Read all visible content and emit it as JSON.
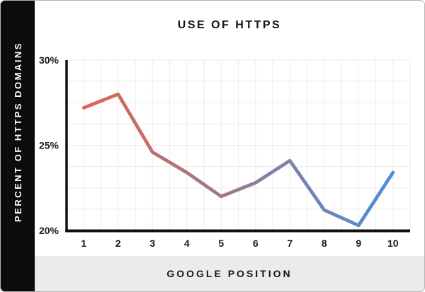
{
  "card": {
    "background": "#ffffff",
    "side_band_color": "#0c0c0c",
    "footer_band_color": "#ebebeb",
    "border_color": "#b5b5b5"
  },
  "chart_data": {
    "type": "line",
    "title": "USE OF HTTPS",
    "xlabel": "GOOGLE POSITION",
    "ylabel": "PERCENT OF HTTPS DOMAINS",
    "x": [
      1,
      2,
      3,
      4,
      5,
      6,
      7,
      8,
      9,
      10
    ],
    "x_tick_labels": [
      "1",
      "2",
      "3",
      "4",
      "5",
      "6",
      "7",
      "8",
      "9",
      "10"
    ],
    "values": [
      27.2,
      28.0,
      24.6,
      23.4,
      22.0,
      22.8,
      24.1,
      21.2,
      20.3,
      23.4
    ],
    "ylim": [
      20,
      30
    ],
    "y_ticks": [
      30,
      25,
      20
    ],
    "y_tick_labels": [
      "30%",
      "25%",
      "20%"
    ],
    "grid": true,
    "y_minor_step_pct": 1.25,
    "x_minor_divisions_per_position": 2,
    "legend": "none",
    "line_gradient_left": "#e1654e",
    "line_gradient_right": "#4a90d8",
    "axis_color": "#111111",
    "grid_color": "#ebebeb",
    "tick_label_color": "#1a1a1a"
  }
}
